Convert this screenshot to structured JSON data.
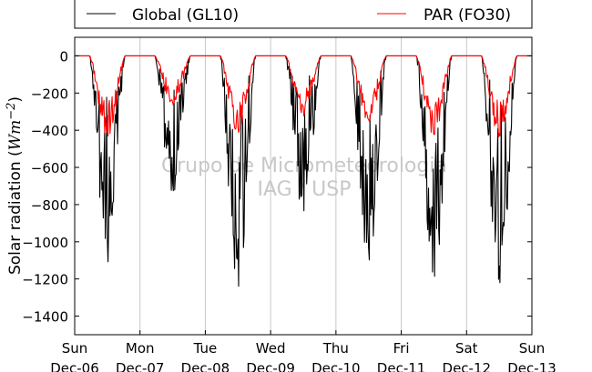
{
  "chart_data": {
    "type": "line",
    "ylabel_text": "Solar radiation (",
    "ylabel_math": "Wm",
    "ylabel_exp": "−2",
    "ylabel_close": ")",
    "ylim": [
      -1500,
      100
    ],
    "yticks": [
      0,
      -200,
      -400,
      -600,
      -800,
      -1000,
      -1200,
      -1400
    ],
    "xlim_days": [
      0,
      7
    ],
    "xtick_day_labels": [
      "Sun",
      "Mon",
      "Tue",
      "Wed",
      "Thu",
      "Fri",
      "Sat",
      "Sun"
    ],
    "xtick_date_labels": [
      "Dec-06",
      "Dec-07",
      "Dec-08",
      "Dec-09",
      "Dec-10",
      "Dec-11",
      "Dec-12",
      "Dec-13"
    ],
    "grid": "vertical",
    "legend_position": "top",
    "watermark": [
      "Grupo de Micrometeorologia",
      "IAG / USP"
    ],
    "series": [
      {
        "name": "Global (GL10)",
        "color": "#000000",
        "daily_peak_min": [
          -1130,
          -740,
          -1265,
          -850,
          -1120,
          -1210,
          -1245
        ]
      },
      {
        "name": "PAR (FO30)",
        "color": "#ff0000",
        "daily_peak_min": [
          -440,
          -270,
          -420,
          -330,
          -360,
          -430,
          -440
        ]
      }
    ]
  }
}
